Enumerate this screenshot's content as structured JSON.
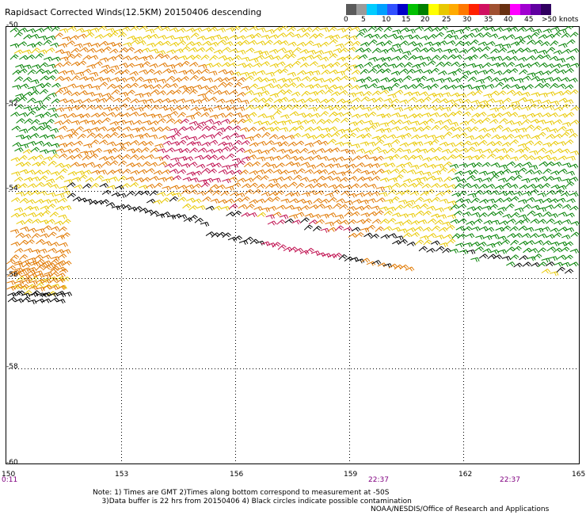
{
  "title": "Rapidsact Corrected Winds(12.5KM) 20150406 descending",
  "legend": {
    "colors": [
      "#5a5a5a",
      "#9a9a9a",
      "#00ccff",
      "#00a0ff",
      "#3050ff",
      "#0000c8",
      "#00c000",
      "#008000",
      "#ffff00",
      "#e8c800",
      "#ffaa00",
      "#ff7800",
      "#ff2000",
      "#d01060",
      "#a05030",
      "#683010",
      "#ff00ff",
      "#a000d0",
      "#6000a0",
      "#300060"
    ],
    "labels": [
      "0",
      "5",
      "10",
      "15",
      "20",
      "25",
      "30",
      "35",
      "40",
      "45",
      ">50 knots"
    ]
  },
  "map": {
    "lat_labels": [
      "-50",
      "-52",
      "-54",
      "-56",
      "-58",
      "-60"
    ],
    "lon_labels": [
      "150",
      "153",
      "156",
      "159",
      "162",
      "165"
    ],
    "times": [
      "0:11",
      "22:37",
      "22:37"
    ]
  },
  "note": {
    "line1": "Note: 1) Times are GMT 2)Times along bottom correspond to measurement at -50S",
    "line2": "3)Data buffer is 22 hrs from 20150406 4) Black circles indicate possible contamination",
    "credit": "NOAA/NESDIS/Office of Research and Applications"
  },
  "wind_colors": {
    "calm": "#000000",
    "light": "#008000",
    "moderate": "#e8c800",
    "strong": "#e07800",
    "severe": "#c01050"
  }
}
